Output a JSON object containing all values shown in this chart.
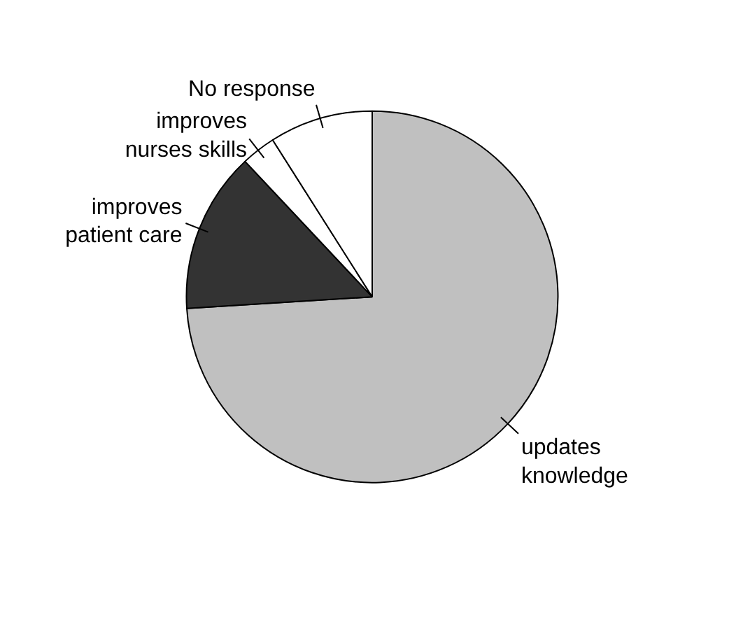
{
  "chart_data": {
    "type": "pie",
    "categories": [
      "updates knowledge",
      "improves patient care",
      "improves nurses skills",
      "No response"
    ],
    "values": [
      74,
      14,
      3,
      9
    ],
    "colors": [
      "#c0c0c0",
      "#333333",
      "#ffffff",
      "#ffffff"
    ]
  }
}
